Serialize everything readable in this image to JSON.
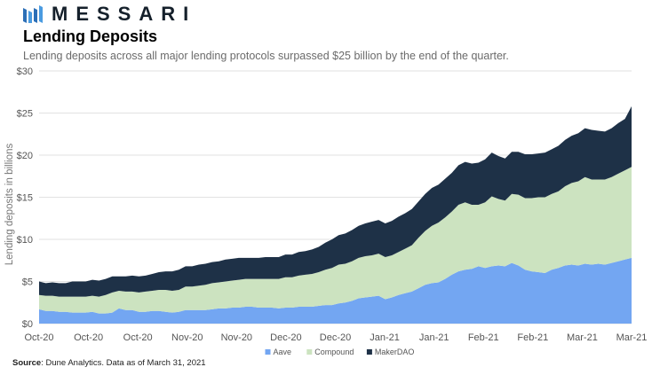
{
  "brand": {
    "name": "MESSARI",
    "logo_icon": "messari-logo-icon"
  },
  "title": "Lending Deposits",
  "subtitle": "Lending deposits across all major lending protocols surpassed $25 billion by the end of the quarter.",
  "source": {
    "label": "Source",
    "text": ": Dune Analytics. Data as of March 31, 2021"
  },
  "chart_data": {
    "type": "area",
    "stacked": true,
    "ylabel": "Lending deposits in billions",
    "ylim": [
      0,
      30
    ],
    "yticks": [
      "$0",
      "$5",
      "$10",
      "$15",
      "$20",
      "$25",
      "$30"
    ],
    "ytick_values": [
      0,
      5,
      10,
      15,
      20,
      25,
      30
    ],
    "xticks": [
      "Oct-20",
      "Oct-20",
      "Oct-20",
      "Nov-20",
      "Nov-20",
      "Dec-20",
      "Dec-20",
      "Jan-21",
      "Jan-21",
      "Feb-21",
      "Feb-21",
      "Mar-21",
      "Mar-21"
    ],
    "x_start": "2020-10-01",
    "x_end": "2021-03-31",
    "legend_position": "bottom-center",
    "grid": "horizontal",
    "series": [
      {
        "name": "Aave",
        "color": "#73a6f2",
        "values": [
          1.7,
          1.5,
          1.5,
          1.4,
          1.4,
          1.3,
          1.3,
          1.3,
          1.4,
          1.2,
          1.2,
          1.3,
          1.8,
          1.6,
          1.6,
          1.4,
          1.4,
          1.5,
          1.5,
          1.4,
          1.3,
          1.4,
          1.6,
          1.6,
          1.6,
          1.6,
          1.7,
          1.8,
          1.8,
          1.9,
          1.9,
          2.0,
          2.0,
          1.9,
          1.9,
          1.9,
          1.8,
          1.9,
          1.9,
          2.0,
          2.0,
          2.0,
          2.1,
          2.2,
          2.2,
          2.4,
          2.5,
          2.7,
          3.0,
          3.1,
          3.2,
          3.3,
          2.9,
          3.1,
          3.4,
          3.6,
          3.8,
          4.2,
          4.6,
          4.8,
          4.9,
          5.3,
          5.8,
          6.2,
          6.4,
          6.5,
          6.8,
          6.6,
          6.8,
          6.9,
          6.8,
          7.2,
          6.9,
          6.4,
          6.2,
          6.1,
          6.0,
          6.4,
          6.6,
          6.9,
          7.0,
          6.9,
          7.1,
          7.0,
          7.1,
          7.0,
          7.2,
          7.4,
          7.6,
          7.8
        ]
      },
      {
        "name": "Compound",
        "color": "#cce3c0",
        "values": [
          1.7,
          1.8,
          1.8,
          1.8,
          1.8,
          1.9,
          1.9,
          1.9,
          1.9,
          2.0,
          2.2,
          2.4,
          2.1,
          2.2,
          2.2,
          2.3,
          2.4,
          2.4,
          2.5,
          2.6,
          2.6,
          2.6,
          2.8,
          2.8,
          2.9,
          3.0,
          3.1,
          3.1,
          3.2,
          3.2,
          3.3,
          3.3,
          3.3,
          3.4,
          3.4,
          3.4,
          3.5,
          3.6,
          3.6,
          3.7,
          3.8,
          3.9,
          4.0,
          4.2,
          4.4,
          4.6,
          4.6,
          4.7,
          4.8,
          4.9,
          4.9,
          5.0,
          5.0,
          5.0,
          5.1,
          5.3,
          5.5,
          6.0,
          6.4,
          6.8,
          7.1,
          7.3,
          7.5,
          7.9,
          8.0,
          7.6,
          7.3,
          7.8,
          8.3,
          7.9,
          7.8,
          8.2,
          8.4,
          8.5,
          8.7,
          8.9,
          9.0,
          9.0,
          9.1,
          9.4,
          9.7,
          10.0,
          10.3,
          10.1,
          10.0,
          10.1,
          10.2,
          10.4,
          10.6,
          10.8
        ]
      },
      {
        "name": "MakerDAO",
        "color": "#1e3147",
        "values": [
          1.6,
          1.5,
          1.6,
          1.6,
          1.6,
          1.8,
          1.8,
          1.8,
          1.9,
          1.9,
          1.9,
          1.9,
          1.7,
          1.8,
          1.9,
          1.9,
          1.9,
          2.0,
          2.1,
          2.2,
          2.3,
          2.4,
          2.4,
          2.4,
          2.5,
          2.5,
          2.5,
          2.5,
          2.6,
          2.6,
          2.6,
          2.5,
          2.5,
          2.5,
          2.6,
          2.6,
          2.6,
          2.7,
          2.7,
          2.8,
          2.8,
          2.9,
          3.0,
          3.2,
          3.4,
          3.5,
          3.6,
          3.7,
          3.8,
          3.9,
          4.0,
          4.0,
          4.0,
          4.1,
          4.2,
          4.2,
          4.3,
          4.3,
          4.4,
          4.5,
          4.5,
          4.6,
          4.6,
          4.7,
          4.8,
          4.9,
          5.0,
          5.1,
          5.2,
          5.1,
          5.0,
          5.0,
          5.1,
          5.2,
          5.2,
          5.2,
          5.3,
          5.3,
          5.4,
          5.5,
          5.6,
          5.7,
          5.8,
          5.9,
          5.8,
          5.7,
          5.8,
          6.0,
          6.1,
          7.2
        ]
      }
    ]
  }
}
